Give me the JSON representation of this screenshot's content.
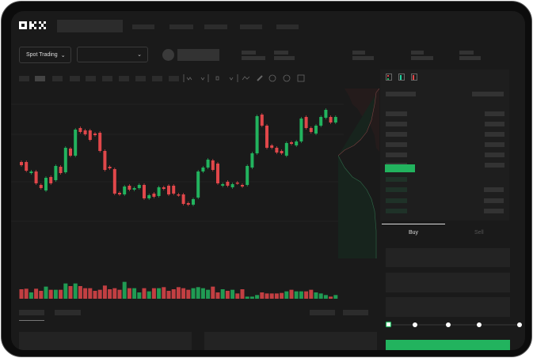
{
  "header": {
    "logo": "OKX",
    "nav_items": 5
  },
  "toolbar": {
    "market_select": "Spot Trading",
    "pair_select": ""
  },
  "trade": {
    "tabs": [
      {
        "label": "Buy",
        "active": true
      },
      {
        "label": "Sell",
        "active": false
      }
    ],
    "slider_value": 0,
    "slider_steps": 5
  },
  "orderbook": {
    "view_icons": [
      "orderbook-both-icon",
      "orderbook-bids-icon",
      "orderbook-asks-icon"
    ]
  },
  "colors": {
    "up": "#22b35e",
    "down": "#e0474a",
    "background": "#1a1a1a"
  },
  "chart_data": {
    "type": "candlestick",
    "candles": [
      [
        57,
        53
      ],
      [
        57,
        46
      ],
      [
        43,
        45
      ],
      [
        45,
        30
      ],
      [
        28,
        24
      ],
      [
        21,
        37
      ],
      [
        38,
        30
      ],
      [
        34,
        52
      ],
      [
        51,
        43
      ],
      [
        44,
        75
      ],
      [
        74,
        65
      ],
      [
        65,
        98
      ],
      [
        100,
        95
      ],
      [
        97,
        92
      ],
      [
        97,
        85
      ],
      [
        93,
        91
      ],
      [
        94,
        71
      ],
      [
        71,
        47
      ],
      [
        51,
        49
      ],
      [
        48,
        17
      ],
      [
        18,
        16
      ],
      [
        16,
        26
      ],
      [
        27,
        22
      ],
      [
        22,
        24
      ],
      [
        24,
        28
      ],
      [
        28,
        11
      ],
      [
        11,
        15
      ],
      [
        17,
        13
      ],
      [
        14,
        25
      ],
      [
        25,
        23
      ],
      [
        27,
        16
      ],
      [
        27,
        17
      ],
      [
        16,
        15
      ],
      [
        16,
        4
      ],
      [
        5,
        3
      ],
      [
        3,
        10
      ],
      [
        12,
        45
      ],
      [
        45,
        50
      ],
      [
        50,
        60
      ],
      [
        59,
        47
      ],
      [
        55,
        30
      ],
      [
        27,
        29
      ],
      [
        32,
        27
      ],
      [
        25,
        29
      ],
      [
        31,
        30
      ],
      [
        28,
        26
      ],
      [
        28,
        52
      ],
      [
        50,
        68
      ],
      [
        68,
        115
      ],
      [
        117,
        103
      ],
      [
        103,
        75
      ],
      [
        78,
        75
      ],
      [
        75,
        69
      ],
      [
        71,
        68
      ],
      [
        65,
        81
      ],
      [
        82,
        80
      ],
      [
        78,
        83
      ],
      [
        83,
        112
      ],
      [
        114,
        100
      ],
      [
        100,
        95
      ],
      [
        93,
        103
      ],
      [
        103,
        114
      ],
      [
        113,
        123
      ],
      [
        114,
        107
      ],
      [
        107,
        114
      ]
    ],
    "volumes": [
      36,
      38,
      24,
      38,
      30,
      46,
      34,
      34,
      34,
      58,
      48,
      58,
      48,
      40,
      40,
      30,
      34,
      50,
      36,
      40,
      34,
      64,
      40,
      40,
      24,
      40,
      28,
      40,
      40,
      44,
      30,
      36,
      44,
      40,
      34,
      40,
      44,
      40,
      34,
      46,
      24,
      36,
      30,
      34,
      20,
      36,
      8,
      8,
      14,
      24,
      20,
      20,
      20,
      22,
      28,
      34,
      28,
      28,
      28,
      34,
      24,
      20,
      14,
      8,
      14
    ]
  }
}
